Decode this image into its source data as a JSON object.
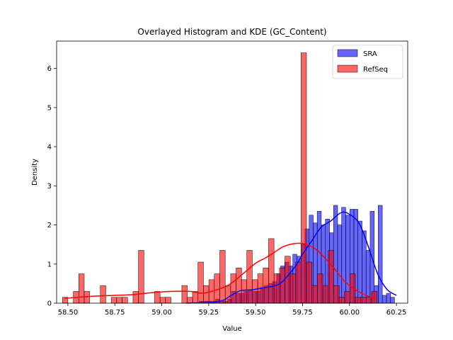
{
  "chart_data": {
    "type": "histogram",
    "title": "Overlayed Histogram and KDE (GC_Content)",
    "xlabel": "Value",
    "ylabel": "Density",
    "xlim": [
      58.44,
      60.31
    ],
    "ylim": [
      0,
      6.7
    ],
    "xticks": [
      58.5,
      58.75,
      59.0,
      59.25,
      59.5,
      59.75,
      60.0,
      60.25
    ],
    "xtick_labels": [
      "58.50",
      "58.75",
      "59.00",
      "59.25",
      "59.50",
      "59.75",
      "60.00",
      "60.25"
    ],
    "yticks": [
      0,
      1,
      2,
      3,
      4,
      5,
      6
    ],
    "ytick_labels": [
      "0",
      "1",
      "2",
      "3",
      "4",
      "5",
      "6"
    ],
    "legend": {
      "position": "top-right",
      "entries": [
        "SRA",
        "RefSeq"
      ]
    },
    "series": [
      {
        "name": "SRA",
        "color": "#0000ff",
        "bin_width": 0.0217,
        "bin_starts": [
          59.135,
          59.157,
          59.178,
          59.2,
          59.222,
          59.243,
          59.265,
          59.287,
          59.308,
          59.33,
          59.352,
          59.373,
          59.395,
          59.417,
          59.438,
          59.46,
          59.482,
          59.503,
          59.525,
          59.547,
          59.568,
          59.59,
          59.612,
          59.633,
          59.655,
          59.677,
          59.698,
          59.72,
          59.742,
          59.763,
          59.785,
          59.807,
          59.828,
          59.85,
          59.872,
          59.893,
          59.915,
          59.937,
          59.958,
          59.98,
          60.002,
          60.023,
          60.045,
          60.067,
          60.088,
          60.11,
          60.132,
          60.153,
          60.175,
          60.197,
          60.218,
          60.24
        ],
        "values": [
          0.0,
          0.0,
          0.0,
          0.05,
          0.05,
          0.05,
          0.05,
          0.1,
          0.05,
          0.05,
          0.1,
          0.3,
          0.25,
          0.25,
          0.3,
          0.35,
          0.3,
          0.3,
          0.4,
          0.45,
          0.5,
          0.55,
          0.75,
          0.95,
          1.05,
          0.95,
          1.25,
          1.2,
          1.5,
          1.9,
          2.25,
          2.05,
          2.35,
          2.0,
          2.15,
          1.8,
          2.5,
          2.0,
          2.45,
          2.25,
          2.4,
          2.4,
          2.1,
          1.85,
          1.35,
          2.35,
          0.45,
          2.5,
          0.2,
          0.25,
          0.15,
          0.0
        ],
        "kde": {
          "x": [
            59.13,
            59.2,
            59.27,
            59.33,
            59.37,
            59.42,
            59.48,
            59.55,
            59.58,
            59.63,
            59.68,
            59.72,
            59.75,
            59.8,
            59.85,
            59.9,
            59.95,
            59.99,
            60.05,
            60.1,
            60.15,
            60.2,
            60.25
          ],
          "y": [
            0.0,
            0.01,
            0.02,
            0.08,
            0.2,
            0.32,
            0.34,
            0.4,
            0.42,
            0.5,
            0.75,
            1.0,
            1.25,
            1.6,
            1.95,
            2.1,
            2.3,
            2.3,
            2.05,
            1.45,
            0.75,
            0.35,
            0.2
          ]
        }
      },
      {
        "name": "RefSeq",
        "color": "#ff0000",
        "bin_width": 0.0289,
        "bin_starts": [
          58.471,
          58.5,
          58.529,
          58.558,
          58.587,
          58.616,
          58.644,
          58.673,
          58.702,
          58.731,
          58.76,
          58.789,
          58.818,
          58.847,
          58.876,
          58.904,
          58.933,
          58.962,
          58.991,
          59.02,
          59.049,
          59.078,
          59.107,
          59.136,
          59.164,
          59.193,
          59.222,
          59.251,
          59.28,
          59.309,
          59.338,
          59.367,
          59.396,
          59.424,
          59.453,
          59.482,
          59.511,
          59.54,
          59.569,
          59.598,
          59.627,
          59.656,
          59.684,
          59.713,
          59.742,
          59.771,
          59.8,
          59.829,
          59.858,
          59.887,
          59.916,
          59.944,
          59.973,
          60.002,
          60.031,
          60.06,
          60.089,
          60.118,
          60.147
        ],
        "values": [
          0.15,
          0.0,
          0.3,
          0.75,
          0.3,
          0.0,
          0.0,
          0.45,
          0.0,
          0.15,
          0.15,
          0.15,
          0.0,
          0.3,
          1.35,
          0.0,
          0.0,
          0.3,
          0.15,
          0.15,
          0.0,
          0.0,
          0.45,
          0.15,
          0.3,
          1.05,
          0.45,
          0.6,
          0.75,
          1.35,
          0.45,
          0.75,
          0.9,
          0.6,
          1.35,
          0.6,
          0.75,
          0.9,
          1.65,
          0.75,
          0.9,
          1.2,
          0.75,
          1.05,
          6.4,
          1.05,
          0.45,
          0.75,
          0.45,
          1.35,
          0.45,
          0.15,
          0.3,
          0.75,
          0.15,
          0.15,
          0.15,
          0.3,
          0.0
        ],
        "kde": {
          "x": [
            58.48,
            58.55,
            58.65,
            58.75,
            58.85,
            58.95,
            59.05,
            59.15,
            59.2,
            59.25,
            59.35,
            59.42,
            59.5,
            59.55,
            59.6,
            59.65,
            59.72,
            59.77,
            59.82,
            59.87,
            59.92,
            59.97,
            60.02,
            60.08,
            60.14
          ],
          "y": [
            0.12,
            0.15,
            0.18,
            0.2,
            0.22,
            0.27,
            0.3,
            0.3,
            0.26,
            0.28,
            0.45,
            0.7,
            1.02,
            1.15,
            1.3,
            1.45,
            1.53,
            1.5,
            1.38,
            1.15,
            0.88,
            0.58,
            0.38,
            0.22,
            0.1
          ]
        }
      }
    ]
  }
}
